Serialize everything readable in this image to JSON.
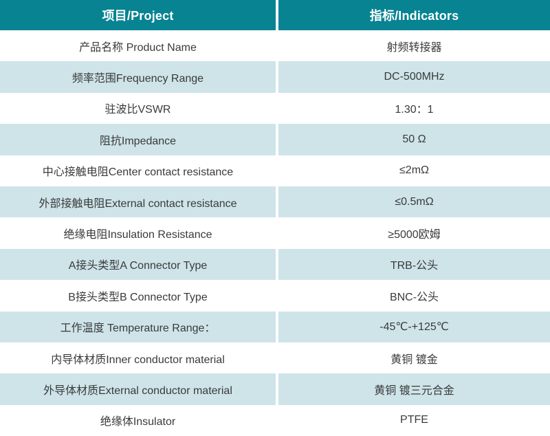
{
  "table": {
    "header": {
      "project": "项目/Project",
      "indicators": "指标/Indicators"
    },
    "rows": [
      {
        "label": "产品名称 Product Name",
        "value": "射频转接器"
      },
      {
        "label": "频率范围Frequency Range",
        "value": "DC-500MHz"
      },
      {
        "label": "驻波比VSWR",
        "value": "1.30：1"
      },
      {
        "label": "阻抗Impedance",
        "value": "50 Ω"
      },
      {
        "label": "中心接触电阻Center contact resistance",
        "value": "≤2mΩ"
      },
      {
        "label": "外部接触电阻External contact resistance",
        "value": "≤0.5mΩ"
      },
      {
        "label": "绝缘电阻Insulation Resistance",
        "value": "≥5000欧姆"
      },
      {
        "label": "A接头类型A Connector Type",
        "value": "TRB-公头"
      },
      {
        "label": "B接头类型B Connector Type",
        "value": "BNC-公头"
      },
      {
        "label": "工作温度 Temperature Range：",
        "value": "-45℃-+125℃"
      },
      {
        "label": "内导体材质Inner conductor material",
        "value": "黄铜 镀金"
      },
      {
        "label": "外导体材质External conductor material",
        "value": "黄铜 镀三元合金"
      },
      {
        "label": "绝缘体Insulator",
        "value": "PTFE"
      }
    ],
    "colors": {
      "header_bg": "#078391",
      "header_text": "#ffffff",
      "alt_row_bg": "#cee4e9",
      "row_bg": "#ffffff",
      "body_text": "#3a3a3a",
      "divider": "#ffffff"
    }
  }
}
